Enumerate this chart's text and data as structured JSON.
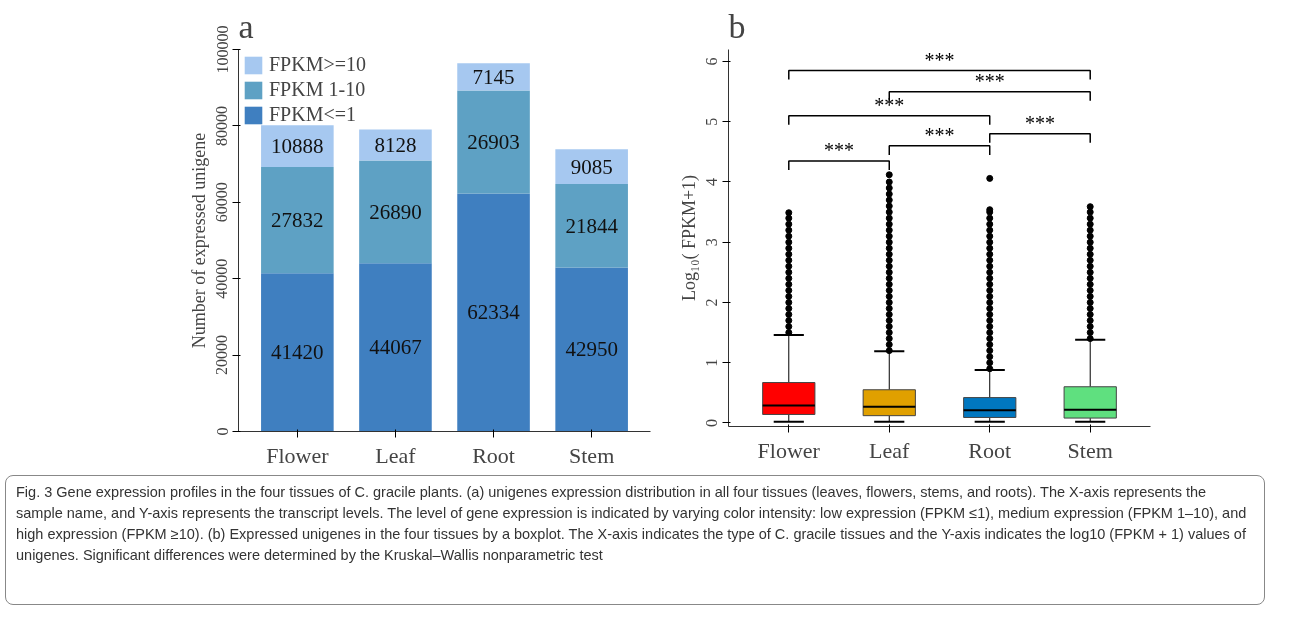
{
  "chart_data": [
    {
      "type": "bar",
      "title": "a",
      "stacked": true,
      "data_labels": true,
      "legend": "top left",
      "grid": false,
      "categories": [
        "Flower",
        "Leaf",
        "Root",
        "Stem"
      ],
      "ylabel": "Number of expressed unigene",
      "ylim": [
        0,
        100000
      ],
      "yticks": [
        0,
        20000,
        40000,
        60000,
        80000,
        100000
      ],
      "series": [
        {
          "name": "FPKM<=1",
          "color": "#3f7fc0",
          "values": [
            41420,
            44067,
            62334,
            42950
          ]
        },
        {
          "name": "FPKM 1-10",
          "color": "#5ea1c4",
          "values": [
            27832,
            26890,
            26903,
            21844
          ]
        },
        {
          "name": "FPKM>=10",
          "color": "#a6c8f0",
          "values": [
            10888,
            8128,
            7145,
            9085
          ]
        }
      ]
    },
    {
      "type": "box",
      "title": "b",
      "categories": [
        "Flower",
        "Leaf",
        "Root",
        "Stem"
      ],
      "ylabel": "Log₁₀( FPKM+1)",
      "ylim": [
        -0.06,
        6.2
      ],
      "yticks": [
        0,
        1,
        2,
        3,
        4,
        5,
        6
      ],
      "grid": false,
      "colors": [
        "#ff0000",
        "#e0a000",
        "#0077c0",
        "#5fe07f"
      ],
      "boxes": [
        {
          "low": 0.02,
          "q1": 0.14,
          "median": 0.29,
          "q3": 0.67,
          "high": 1.46,
          "outliers": [
            1.5,
            1.6,
            1.7,
            1.8,
            1.9,
            2.0,
            2.1,
            2.2,
            2.3,
            2.4,
            2.5,
            2.6,
            2.7,
            2.8,
            2.9,
            3.0,
            3.1,
            3.2,
            3.3,
            3.4,
            3.49
          ]
        },
        {
          "low": 0.02,
          "q1": 0.12,
          "median": 0.27,
          "q3": 0.55,
          "high": 1.19,
          "outliers": [
            1.2,
            1.3,
            1.4,
            1.5,
            1.6,
            1.7,
            1.8,
            1.9,
            2.0,
            2.1,
            2.2,
            2.3,
            2.4,
            2.5,
            2.6,
            2.7,
            2.8,
            2.9,
            3.0,
            3.1,
            3.2,
            3.3,
            3.4,
            3.5,
            3.6,
            3.7,
            3.8,
            3.9,
            4.0,
            4.12
          ]
        },
        {
          "low": 0.02,
          "q1": 0.09,
          "median": 0.21,
          "q3": 0.42,
          "high": 0.88,
          "outliers": [
            0.9,
            1.0,
            1.1,
            1.2,
            1.3,
            1.4,
            1.5,
            1.6,
            1.7,
            1.8,
            1.9,
            2.0,
            2.1,
            2.2,
            2.3,
            2.4,
            2.5,
            2.6,
            2.7,
            2.8,
            2.9,
            3.0,
            3.1,
            3.2,
            3.3,
            3.4,
            3.5,
            3.54,
            4.06
          ]
        },
        {
          "low": 0.02,
          "q1": 0.08,
          "median": 0.22,
          "q3": 0.6,
          "high": 1.38,
          "outliers": [
            1.4,
            1.5,
            1.6,
            1.7,
            1.8,
            1.9,
            2.0,
            2.1,
            2.2,
            2.3,
            2.4,
            2.5,
            2.6,
            2.7,
            2.8,
            2.9,
            3.0,
            3.1,
            3.2,
            3.3,
            3.4,
            3.5,
            3.59
          ]
        }
      ],
      "annotations": [
        "***",
        "***",
        "***",
        "***",
        "***",
        "***",
        "Fig. 3 Gene expression profiles in the four tissues of C. gracile plants. (a) unigenes expression distribution in all four tissues (leaves, flowers, stems, and roots). The X-axis represents the sample name, and Y-axis represents the transcript levels. The level of gene expression is indicated by varying color intensity: low expression (FPKM ≤1), medium expression (FPKM 1–10), and high expression (FPKM ≥10). (b) Expressed unigenes in the four tissues by a boxplot. The X-axis indicates the type of C. gracile tissues and the Y-axis indicates the log10 (FPKM + 1) values of unigenes. Significant differences were determined by the Kruskal–Wallis nonparametric test"
      ]
    }
  ]
}
